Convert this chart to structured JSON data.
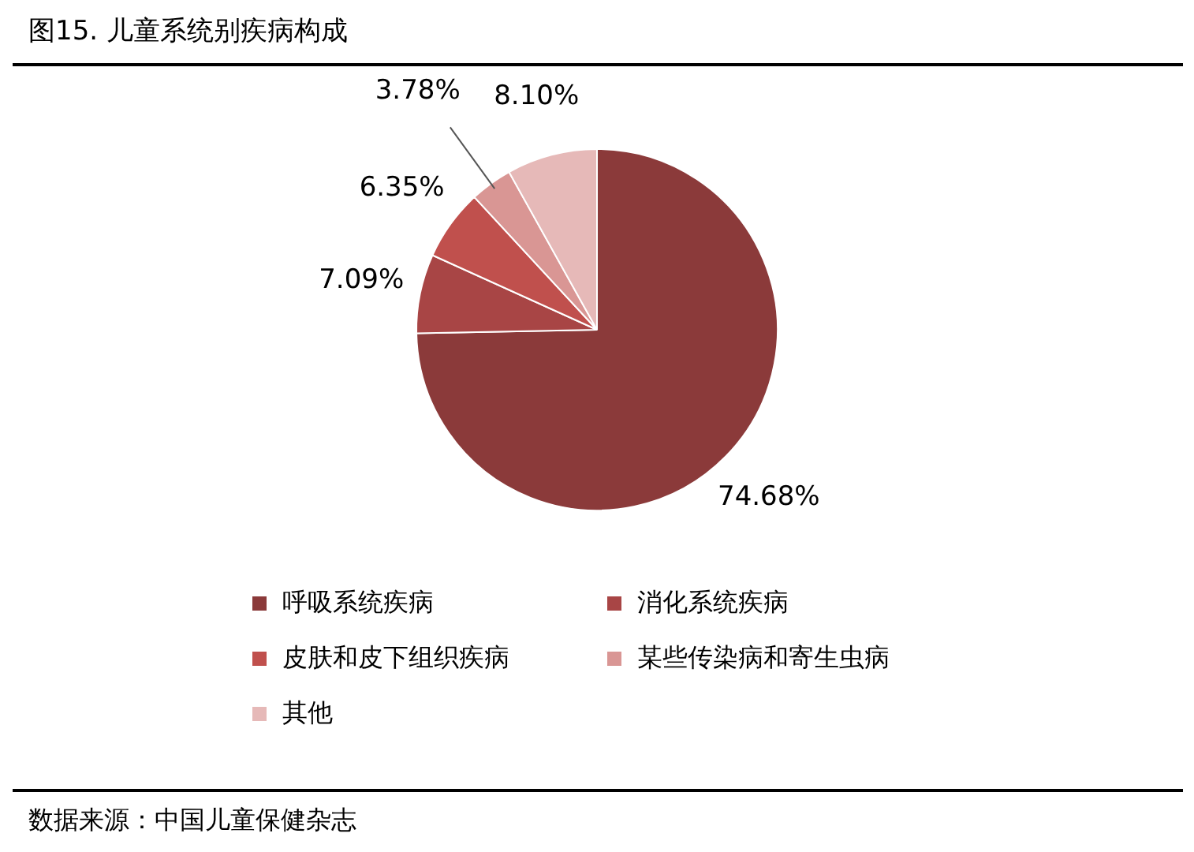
{
  "chart_data": {
    "type": "pie",
    "title": "图15. 儿童系统别疾病构成",
    "categories": [
      "呼吸系统疾病",
      "消化系统疾病",
      "皮肤和皮下组织疾病",
      "某些传染病和寄生虫病",
      "其他"
    ],
    "values": [
      74.68,
      7.09,
      6.35,
      3.78,
      8.1
    ],
    "value_labels": [
      "74.68%",
      "7.09%",
      "6.35%",
      "3.78%",
      "8.10%"
    ],
    "colors": [
      "#8b3a3a",
      "#a84545",
      "#c0504d",
      "#d99694",
      "#e6b9b8"
    ],
    "legend": "bottom",
    "annotations": [
      "数据来源：中国儿童保健杂志"
    ]
  }
}
